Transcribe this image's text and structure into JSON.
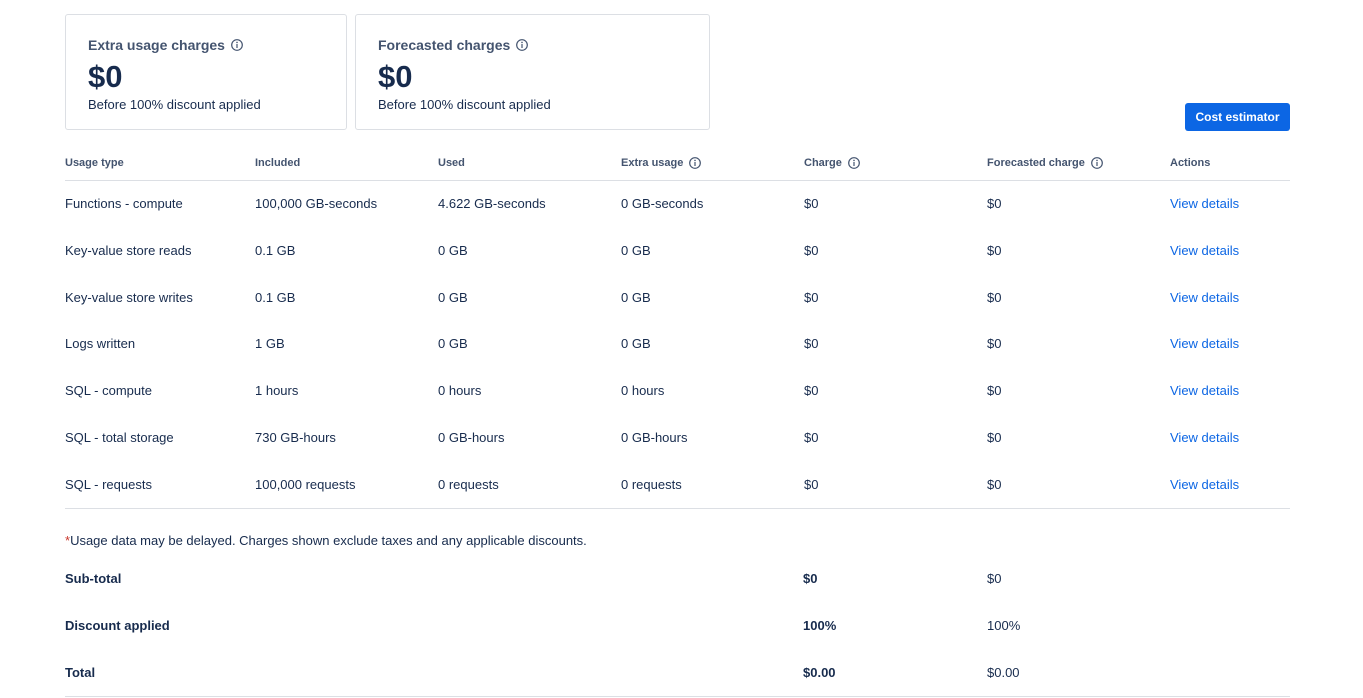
{
  "cards": [
    {
      "title": "Extra usage charges",
      "amount": "$0",
      "note": "Before 100% discount applied"
    },
    {
      "title": "Forecasted charges",
      "amount": "$0",
      "note": "Before 100% discount applied"
    }
  ],
  "button": "Cost estimator",
  "table": {
    "headers": [
      "Usage type",
      "Included",
      "Used",
      "Extra usage",
      "Charge",
      "Forecasted charge",
      "Actions"
    ],
    "rows": [
      [
        "Functions - compute",
        "100,000 GB-seconds",
        "4.622 GB-seconds",
        "0 GB-seconds",
        "$0",
        "$0",
        "View details"
      ],
      [
        "Key-value store reads",
        "0.1 GB",
        "0 GB",
        "0 GB",
        "$0",
        "$0",
        "View details"
      ],
      [
        "Key-value store writes",
        "0.1 GB",
        "0 GB",
        "0 GB",
        "$0",
        "$0",
        "View details"
      ],
      [
        "Logs written",
        "1 GB",
        "0 GB",
        "0 GB",
        "$0",
        "$0",
        "View details"
      ],
      [
        "SQL - compute",
        "1 hours",
        "0 hours",
        "0 hours",
        "$0",
        "$0",
        "View details"
      ],
      [
        "SQL - total storage",
        "730 GB-hours",
        "0 GB-hours",
        "0 GB-hours",
        "$0",
        "$0",
        "View details"
      ],
      [
        "SQL - requests",
        "100,000 requests",
        "0 requests",
        "0 requests",
        "$0",
        "$0",
        "View details"
      ]
    ]
  },
  "footnote": {
    "mark": "*",
    "text": "Usage data may be delayed. Charges shown exclude taxes and any applicable discounts."
  },
  "summary": [
    {
      "label": "Sub-total",
      "charge": "$0",
      "forecast": "$0"
    },
    {
      "label": "Discount applied",
      "charge": "100%",
      "forecast": "100%"
    },
    {
      "label": "Total",
      "charge": "$0.00",
      "forecast": "$0.00"
    }
  ]
}
